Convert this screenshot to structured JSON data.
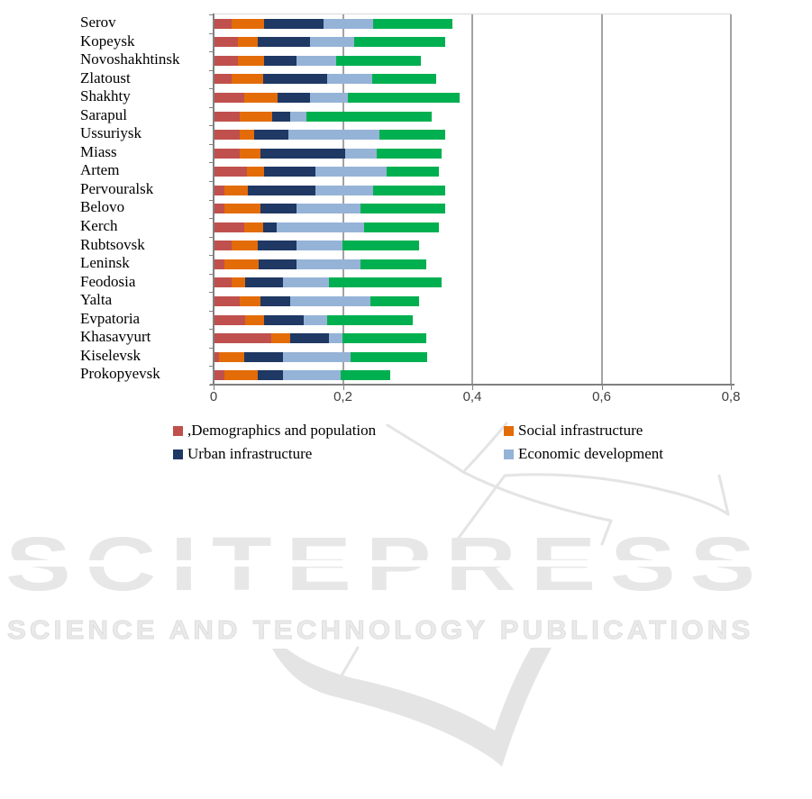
{
  "watermark": {
    "wordmark": "SCITEPRESS",
    "subtitle": "SCIENCE AND TECHNOLOGY PUBLICATIONS",
    "color": "#e7e7e7"
  },
  "chart_data": {
    "type": "bar",
    "orientation": "horizontal",
    "stacked": true,
    "title": "",
    "xlabel": "",
    "ylabel": "",
    "xlim": [
      0,
      0.8
    ],
    "grid": "vertical",
    "legend_position": "bottom",
    "x_ticks": [
      "0",
      "0,2",
      "0,4",
      "0,6",
      "0,8"
    ],
    "x_tick_values": [
      0,
      0.2,
      0.4,
      0.6,
      0.8
    ],
    "categories": [
      "Serov",
      "Kopeysk",
      "Novoshakhtinsk",
      "Zlatoust",
      "Shakhty",
      "Sarapul",
      "Ussuriysk",
      "Miass",
      "Artem",
      "Pervouralsk",
      "Belovo",
      "Kerch",
      "Rubtsovsk",
      "Leninsk",
      "Feodosia",
      "Yalta",
      "Evpatoria",
      "Khasavyurt",
      "Kiselevsk",
      "Prokopyevsk"
    ],
    "series": [
      {
        "name": "Demographics and population",
        "legend_label": ",Demographics and population",
        "in_legend": true,
        "color": "#C0504D",
        "values": [
          0.028,
          0.038,
          0.038,
          0.028,
          0.047,
          0.04,
          0.04,
          0.04,
          0.051,
          0.017,
          0.017,
          0.047,
          0.028,
          0.017,
          0.028,
          0.04,
          0.049,
          0.089,
          0.009,
          0.017
        ]
      },
      {
        "name": "Social infrastructure",
        "legend_label": "Social infrastructure",
        "in_legend": true,
        "color": "#E36C09",
        "values": [
          0.05,
          0.03,
          0.04,
          0.048,
          0.052,
          0.051,
          0.023,
          0.032,
          0.027,
          0.036,
          0.055,
          0.029,
          0.04,
          0.053,
          0.021,
          0.032,
          0.029,
          0.029,
          0.038,
          0.051
        ]
      },
      {
        "name": "Urban infrastructure",
        "legend_label": "Urban infrastructure",
        "in_legend": true,
        "color": "#1F3864",
        "values": [
          0.092,
          0.081,
          0.05,
          0.1,
          0.05,
          0.027,
          0.053,
          0.132,
          0.079,
          0.104,
          0.056,
          0.021,
          0.06,
          0.058,
          0.058,
          0.046,
          0.061,
          0.06,
          0.06,
          0.039
        ]
      },
      {
        "name": "Economic development",
        "legend_label": "Economic development",
        "in_legend": true,
        "color": "#95B3D7",
        "values": [
          0.077,
          0.069,
          0.061,
          0.069,
          0.059,
          0.025,
          0.14,
          0.048,
          0.111,
          0.09,
          0.099,
          0.136,
          0.071,
          0.099,
          0.071,
          0.125,
          0.037,
          0.021,
          0.105,
          0.09
        ]
      },
      {
        "name": "",
        "legend_label": null,
        "in_legend": false,
        "color": "#00B050",
        "values": [
          0.122,
          0.14,
          0.131,
          0.099,
          0.172,
          0.194,
          0.102,
          0.1,
          0.08,
          0.111,
          0.131,
          0.115,
          0.119,
          0.102,
          0.174,
          0.075,
          0.132,
          0.13,
          0.119,
          0.076
        ]
      }
    ]
  }
}
